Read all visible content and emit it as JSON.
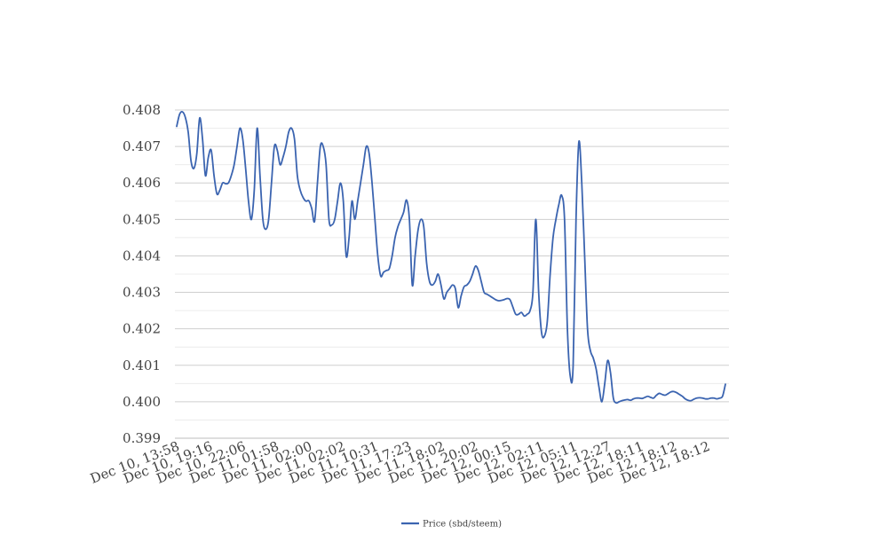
{
  "chart_data": {
    "type": "line",
    "x_tick_labels": [
      "Dec 10, 13:58",
      "Dec 10, 19:16",
      "Dec 10, 22:06",
      "Dec 11, 01:58",
      "Dec 11, 02:00",
      "Dec 11, 02:02",
      "Dec 11, 10:31",
      "Dec 11, 17:23",
      "Dec 11, 18:02",
      "Dec 11, 20:02",
      "Dec 12, 00:15",
      "Dec 12, 02:11",
      "Dec 12, 05:11",
      "Dec 12, 12:27",
      "Dec 12, 18:11",
      "Dec 12, 18:12",
      "Dec 12, 18:12"
    ],
    "y_tick_labels": [
      "0.399",
      "0.400",
      "0.401",
      "0.402",
      "0.403",
      "0.404",
      "0.405",
      "0.406",
      "0.407",
      "0.408"
    ],
    "ylim": [
      0.399,
      0.408
    ],
    "grid": true,
    "legend_position": "bottom-center",
    "series": [
      {
        "name": "Price (sbd/steem)",
        "color": "#3b64b0",
        "x_range": [
          0,
          16
        ],
        "values": [
          0.40755,
          0.40788,
          0.40795,
          0.4078,
          0.4074,
          0.4066,
          0.4064,
          0.4068,
          0.40778,
          0.4072,
          0.4062,
          0.4067,
          0.4069,
          0.4062,
          0.4057,
          0.4058,
          0.406,
          0.40598,
          0.406,
          0.4062,
          0.4065,
          0.407,
          0.4075,
          0.4072,
          0.4064,
          0.4055,
          0.405,
          0.4058,
          0.4075,
          0.4062,
          0.405,
          0.40473,
          0.405,
          0.406,
          0.407,
          0.4069,
          0.4065,
          0.4067,
          0.407,
          0.4074,
          0.4075,
          0.4072,
          0.4062,
          0.4058,
          0.4056,
          0.4055,
          0.40551,
          0.4053,
          0.40495,
          0.406,
          0.407,
          0.407,
          0.4065,
          0.405,
          0.40485,
          0.405,
          0.4055,
          0.406,
          0.4055,
          0.404,
          0.4045,
          0.4055,
          0.405,
          0.4055,
          0.406,
          0.4065,
          0.407,
          0.4068,
          0.406,
          0.405,
          0.404,
          0.40345,
          0.40355,
          0.4036,
          0.40365,
          0.404,
          0.4045,
          0.4048,
          0.405,
          0.4052,
          0.40553,
          0.405,
          0.4032,
          0.404,
          0.4047,
          0.405,
          0.4048,
          0.4038,
          0.4033,
          0.4032,
          0.4033,
          0.4035,
          0.4032,
          0.40282,
          0.403,
          0.4031,
          0.4032,
          0.4031,
          0.40258,
          0.4029,
          0.40315,
          0.4032,
          0.4033,
          0.4035,
          0.40372,
          0.4036,
          0.4033,
          0.403,
          0.40295,
          0.4029,
          0.40285,
          0.4028,
          0.40277,
          0.40278,
          0.4028,
          0.40283,
          0.4028,
          0.4026,
          0.4024,
          0.4024,
          0.40245,
          0.40235,
          0.4024,
          0.4025,
          0.403,
          0.405,
          0.403,
          0.4019,
          0.4018,
          0.4022,
          0.4035,
          0.4045,
          0.405,
          0.4054,
          0.40566,
          0.405,
          0.402,
          0.4007,
          0.401,
          0.405,
          0.40713,
          0.406,
          0.404,
          0.402,
          0.4014,
          0.4012,
          0.4009,
          0.4004,
          0.4,
          0.4005,
          0.40113,
          0.4008,
          0.4001,
          0.39997,
          0.4,
          0.40003,
          0.40005,
          0.40006,
          0.40004,
          0.40008,
          0.4001,
          0.4001,
          0.40009,
          0.40012,
          0.40015,
          0.40012,
          0.4001,
          0.40018,
          0.40023,
          0.4002,
          0.40018,
          0.40022,
          0.40027,
          0.40028,
          0.40025,
          0.4002,
          0.40015,
          0.40008,
          0.40004,
          0.40003,
          0.40007,
          0.4001,
          0.40011,
          0.4001,
          0.40008,
          0.40008,
          0.4001,
          0.4001,
          0.40008,
          0.4001,
          0.40015,
          0.40048
        ]
      }
    ]
  }
}
